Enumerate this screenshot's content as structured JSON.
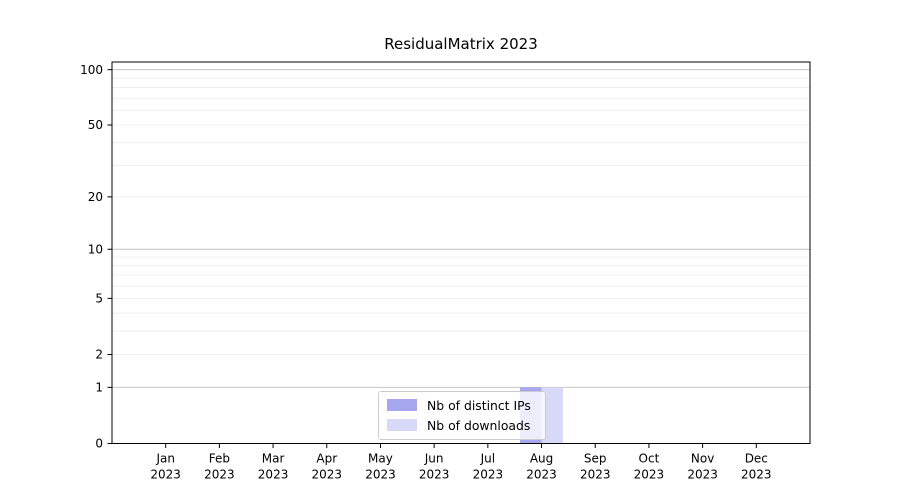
{
  "page": {
    "title": "ResidualMatrix 2023"
  },
  "chart_data": {
    "type": "bar",
    "title": "ResidualMatrix 2023",
    "categories": [
      "Jan 2023",
      "Feb 2023",
      "Mar 2023",
      "Apr 2023",
      "May 2023",
      "Jun 2023",
      "Jul 2023",
      "Aug 2023",
      "Sep 2023",
      "Oct 2023",
      "Nov 2023",
      "Dec 2023"
    ],
    "x_tick_months": [
      "Jan",
      "Feb",
      "Mar",
      "Apr",
      "May",
      "Jun",
      "Jul",
      "Aug",
      "Sep",
      "Oct",
      "Nov",
      "Dec"
    ],
    "x_tick_year": "2023",
    "series": [
      {
        "name": "Nb of distinct IPs",
        "color": "#a7a7f0",
        "values": [
          0,
          0,
          0,
          0,
          0,
          0,
          0,
          1,
          0,
          0,
          0,
          0
        ]
      },
      {
        "name": "Nb of downloads",
        "color": "#d8d8f8",
        "values": [
          0,
          0,
          0,
          0,
          0,
          0,
          0,
          1,
          0,
          0,
          0,
          0
        ]
      }
    ],
    "y_scale": "log1p",
    "ylim": [
      0,
      110
    ],
    "y_ticks": [
      0,
      1,
      2,
      5,
      10,
      20,
      50,
      100
    ],
    "y_major_gridlines": [
      1,
      10,
      100
    ],
    "y_minor_gridlines": [
      2,
      3,
      4,
      5,
      6,
      7,
      8,
      9,
      20,
      30,
      40,
      50,
      60,
      70,
      80,
      90
    ],
    "grid": true,
    "legend_position": "lower-center"
  },
  "style": {
    "axis_color": "#000000",
    "major_grid_color": "#c4c4c4",
    "minor_grid_color": "#efefef",
    "legend_border_color": "#cccccc"
  }
}
